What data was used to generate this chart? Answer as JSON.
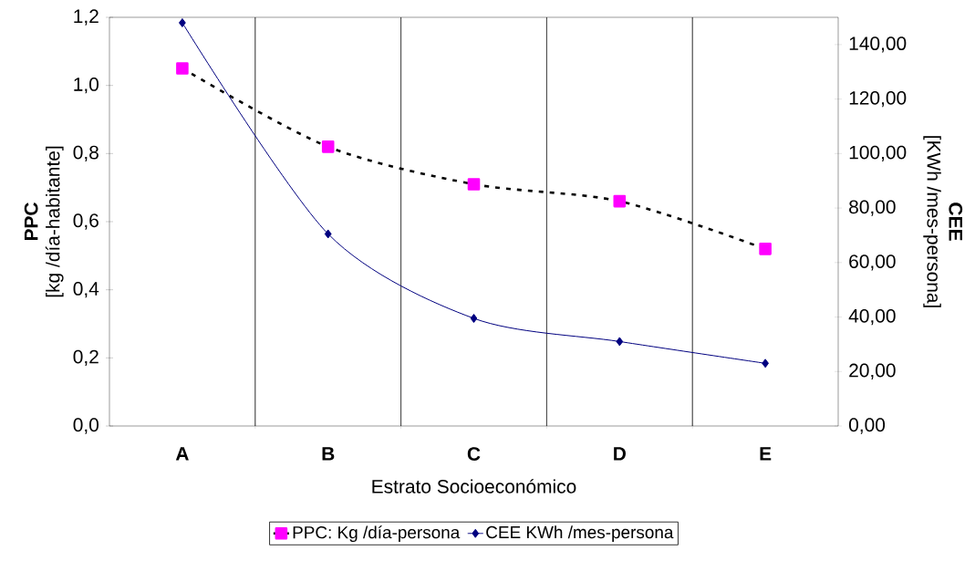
{
  "chart_data": {
    "type": "line",
    "categories": [
      "A",
      "B",
      "C",
      "D",
      "E"
    ],
    "xlabel": "Estrato Socioeconómico",
    "ylabel": "**PPC** [kg /día-habitante]",
    "y2label": "**CEE** [KWh /mes-persona]",
    "ylim": [
      0,
      1.2
    ],
    "yticks": [
      {
        "value": 0,
        "label": "0,0"
      },
      {
        "value": 0.2,
        "label": "0,2"
      },
      {
        "value": 0.4,
        "label": "0,4"
      },
      {
        "value": 0.6,
        "label": "0,6"
      },
      {
        "value": 0.8,
        "label": "0,8"
      },
      {
        "value": 1.0,
        "label": "1,0"
      },
      {
        "value": 1.2,
        "label": "1,2"
      }
    ],
    "y2lim": [
      0,
      150
    ],
    "y2ticks": [
      {
        "value": 0,
        "label": "0,00"
      },
      {
        "value": 20,
        "label": "20,00"
      },
      {
        "value": 40,
        "label": "40,00"
      },
      {
        "value": 60,
        "label": "60,00"
      },
      {
        "value": 80,
        "label": "80,00"
      },
      {
        "value": 100,
        "label": "100,00"
      },
      {
        "value": 120,
        "label": "120,00"
      },
      {
        "value": 140,
        "label": "140,00"
      }
    ],
    "grid": "x",
    "legend": "bottom",
    "series": [
      {
        "name": "PPC:  Kg /día-persona",
        "color": "#ff00ff",
        "values": [
          1.05,
          0.82,
          0.71,
          0.66,
          0.52
        ],
        "marker": "square",
        "line_style": "dashed"
      },
      {
        "name": "CEE KWh /mes-persona",
        "color": "#000080",
        "values": [
          148,
          70.5,
          39.5,
          31,
          23
        ],
        "axis": "y2",
        "marker": "diamond",
        "line_style": "solid"
      }
    ]
  }
}
